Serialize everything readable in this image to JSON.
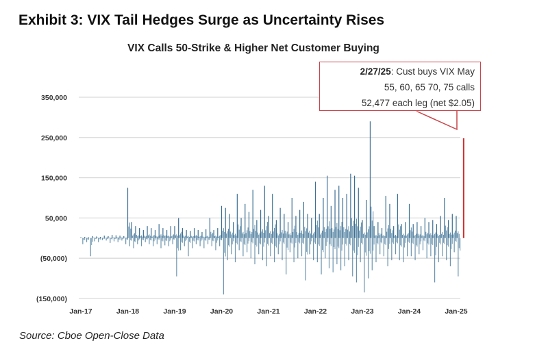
{
  "title": "Exhibit 3: VIX Tail Hedges Surge as Uncertainty Rises",
  "source": "Source: Cboe Open-Close Data",
  "chart_data": {
    "type": "bar",
    "title": "VIX Calls 50-Strike & Higher Net Customer Buying",
    "xlabel": "",
    "ylabel": "",
    "ylim": [
      -150000,
      350000
    ],
    "yticks": [
      350000,
      250000,
      150000,
      50000,
      -50000,
      -150000
    ],
    "ytick_labels": [
      "350,000",
      "250,000",
      "150,000",
      "50,000",
      "(50,000)",
      "(150,000)"
    ],
    "xticks": [
      "Jan-17",
      "Jan-18",
      "Jan-19",
      "Jan-20",
      "Jan-21",
      "Jan-22",
      "Jan-23",
      "Jan-24",
      "Jan-25"
    ],
    "grid": true,
    "bar_color": "#3a6f93",
    "highlight_color": "#d22b2b",
    "monthly_extremes": [
      {
        "year": 2017,
        "net_buy_max": [
          2000,
          3000,
          2000,
          5000,
          4000,
          3000,
          6000,
          5000,
          8000,
          7000,
          6000,
          5000
        ],
        "net_buy_min": [
          -15000,
          -10000,
          -45000,
          -8000,
          -10000,
          -5000,
          -6000,
          -12000,
          -8000,
          -10000,
          -6000,
          -15000
        ]
      },
      {
        "year": 2018,
        "net_buy_max": [
          125000,
          40000,
          30000,
          25000,
          20000,
          30000,
          25000,
          20000,
          35000,
          25000,
          20000,
          30000
        ],
        "net_buy_min": [
          -20000,
          -25000,
          -15000,
          -20000,
          -10000,
          -15000,
          -20000,
          -15000,
          -25000,
          -18000,
          -20000,
          -15000
        ]
      },
      {
        "year": 2019,
        "net_buy_max": [
          30000,
          50000,
          25000,
          20000,
          18000,
          25000,
          20000,
          15000,
          22000,
          50000,
          20000,
          25000
        ],
        "net_buy_min": [
          -95000,
          -30000,
          -20000,
          -45000,
          -25000,
          -15000,
          -20000,
          -25000,
          -15000,
          -20000,
          -30000,
          -20000
        ]
      },
      {
        "year": 2020,
        "net_buy_max": [
          80000,
          75000,
          60000,
          40000,
          110000,
          50000,
          85000,
          65000,
          120000,
          45000,
          70000,
          130000
        ],
        "net_buy_min": [
          -140000,
          -55000,
          -40000,
          -60000,
          -30000,
          -45000,
          -35000,
          -50000,
          -65000,
          -40000,
          -55000,
          -70000
        ]
      },
      {
        "year": 2021,
        "net_buy_max": [
          55000,
          110000,
          45000,
          75000,
          60000,
          40000,
          100000,
          55000,
          70000,
          90000,
          60000,
          50000
        ],
        "net_buy_min": [
          -45000,
          -60000,
          -40000,
          -55000,
          -90000,
          -35000,
          -60000,
          -50000,
          -45000,
          -105000,
          -40000,
          -55000
        ]
      },
      {
        "year": 2022,
        "net_buy_max": [
          140000,
          60000,
          100000,
          155000,
          80000,
          120000,
          130000,
          100000,
          110000,
          160000,
          155000,
          125000
        ],
        "net_buy_min": [
          -60000,
          -90000,
          -50000,
          -75000,
          -85000,
          -65000,
          -80000,
          -70000,
          -55000,
          -95000,
          -110000,
          -60000
        ]
      },
      {
        "year": 2023,
        "net_buy_max": [
          45000,
          95000,
          290000,
          30000,
          40000,
          25000,
          105000,
          85000,
          30000,
          110000,
          35000,
          40000
        ],
        "net_buy_min": [
          -135000,
          -100000,
          -80000,
          -60000,
          -40000,
          -45000,
          -70000,
          -55000,
          -40000,
          -55000,
          -60000,
          -45000
        ]
      },
      {
        "year": 2024,
        "net_buy_max": [
          85000,
          35000,
          40000,
          30000,
          50000,
          40000,
          45000,
          35000,
          55000,
          100000,
          45000,
          60000
        ],
        "net_buy_min": [
          -45000,
          -55000,
          -40000,
          -30000,
          -50000,
          -45000,
          -110000,
          -60000,
          -45000,
          -55000,
          -70000,
          -35000
        ]
      },
      {
        "year": 2025,
        "net_buy_max": [
          55000
        ],
        "net_buy_min": [
          -95000
        ]
      }
    ],
    "highlight": {
      "date": "2/27/25",
      "value": 248000
    },
    "annotation": {
      "date_label": "2/27/25",
      "line1": ": Cust buys VIX May",
      "line2": "55, 60, 65 70, 75 calls",
      "line3": "52,477 each leg (net $2.05)"
    }
  }
}
